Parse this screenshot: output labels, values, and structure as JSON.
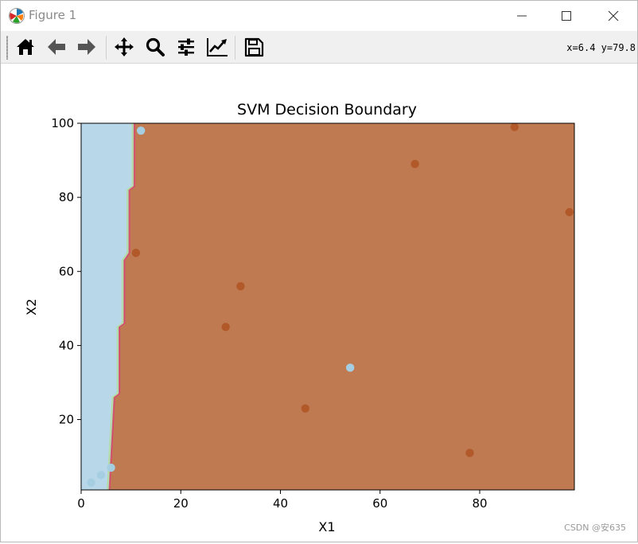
{
  "window": {
    "title": "Figure 1"
  },
  "toolbar": {
    "buttons": [
      {
        "name": "home-icon"
      },
      {
        "name": "back-arrow-icon"
      },
      {
        "name": "forward-arrow-icon"
      },
      {
        "name": "pan-icon"
      },
      {
        "name": "zoom-icon"
      },
      {
        "name": "configure-subplots-icon"
      },
      {
        "name": "edit-axis-icon"
      },
      {
        "name": "save-icon"
      }
    ],
    "coords_text": "x=6.4 y=79.8"
  },
  "colors": {
    "class_0": "#a6cee3",
    "class_1": "#b15928",
    "region_0": "#b8d7e8",
    "region_1": "#bf7a52"
  },
  "chart_data": {
    "type": "scatter",
    "title": "SVM Decision Boundary",
    "xlabel": "X1",
    "ylabel": "X2",
    "xlim": [
      0,
      99
    ],
    "ylim": [
      1,
      100
    ],
    "x_ticks": [
      0,
      20,
      40,
      60,
      80
    ],
    "y_ticks": [
      20,
      40,
      60,
      80,
      100
    ],
    "grid": false,
    "boundary": [
      {
        "y": 1,
        "x": 5.5
      },
      {
        "y": 26,
        "x": 6.5
      },
      {
        "y": 27,
        "x": 7.5
      },
      {
        "y": 45,
        "x": 7.5
      },
      {
        "y": 46,
        "x": 8.5
      },
      {
        "y": 63,
        "x": 8.5
      },
      {
        "y": 64,
        "x": 9.0
      },
      {
        "y": 65,
        "x": 9.5
      },
      {
        "y": 82,
        "x": 9.5
      },
      {
        "y": 83,
        "x": 10.5
      },
      {
        "y": 100,
        "x": 10.5
      }
    ],
    "points": [
      {
        "x": 2,
        "y": 3,
        "cls": 0
      },
      {
        "x": 4,
        "y": 5,
        "cls": 0
      },
      {
        "x": 6,
        "y": 7,
        "cls": 0
      },
      {
        "x": 12,
        "y": 98,
        "cls": 0
      },
      {
        "x": 54,
        "y": 34,
        "cls": 0
      },
      {
        "x": 11,
        "y": 65,
        "cls": 1
      },
      {
        "x": 32,
        "y": 56,
        "cls": 1
      },
      {
        "x": 29,
        "y": 45,
        "cls": 1
      },
      {
        "x": 45,
        "y": 23,
        "cls": 1
      },
      {
        "x": 67,
        "y": 89,
        "cls": 1
      },
      {
        "x": 87,
        "y": 99,
        "cls": 1
      },
      {
        "x": 98,
        "y": 76,
        "cls": 1
      },
      {
        "x": 78,
        "y": 11,
        "cls": 1
      }
    ]
  },
  "watermark": "CSDN @安635"
}
